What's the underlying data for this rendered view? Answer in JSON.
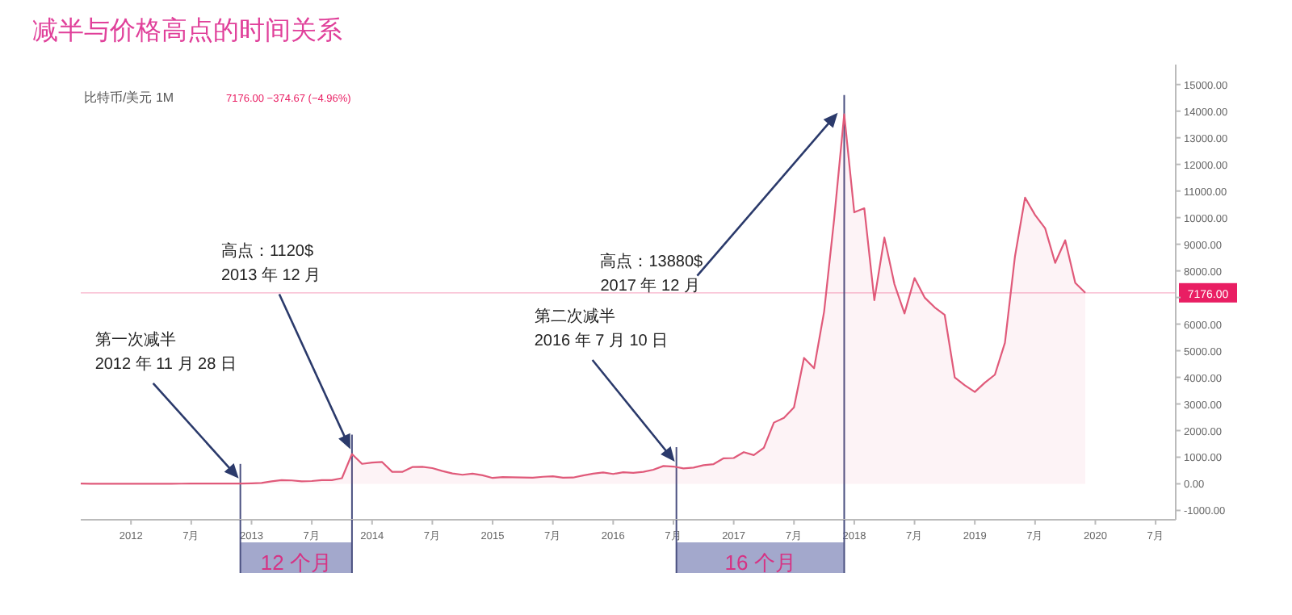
{
  "chart_data": {
    "type": "area",
    "title": "减半与价格高点的时间关系",
    "subtitle": "比特币/美元  1M",
    "x": [
      "2011-08",
      "2011-09",
      "2011-10",
      "2011-11",
      "2011-12",
      "2012-01",
      "2012-02",
      "2012-03",
      "2012-04",
      "2012-05",
      "2012-06",
      "2012-07",
      "2012-08",
      "2012-09",
      "2012-10",
      "2012-11",
      "2012-12",
      "2013-01",
      "2013-02",
      "2013-03",
      "2013-04",
      "2013-05",
      "2013-06",
      "2013-07",
      "2013-08",
      "2013-09",
      "2013-10",
      "2013-11",
      "2013-12",
      "2014-01",
      "2014-02",
      "2014-03",
      "2014-04",
      "2014-05",
      "2014-06",
      "2014-07",
      "2014-08",
      "2014-09",
      "2014-10",
      "2014-11",
      "2014-12",
      "2015-01",
      "2015-02",
      "2015-03",
      "2015-04",
      "2015-05",
      "2015-06",
      "2015-07",
      "2015-08",
      "2015-09",
      "2015-10",
      "2015-11",
      "2015-12",
      "2016-01",
      "2016-02",
      "2016-03",
      "2016-04",
      "2016-05",
      "2016-06",
      "2016-07",
      "2016-08",
      "2016-09",
      "2016-10",
      "2016-11",
      "2016-12",
      "2017-01",
      "2017-02",
      "2017-03",
      "2017-04",
      "2017-05",
      "2017-06",
      "2017-07",
      "2017-08",
      "2017-09",
      "2017-10",
      "2017-11",
      "2017-12",
      "2018-01",
      "2018-02",
      "2018-03",
      "2018-04",
      "2018-05",
      "2018-06",
      "2018-07",
      "2018-08",
      "2018-09",
      "2018-10",
      "2018-11",
      "2018-12",
      "2019-01",
      "2019-02",
      "2019-03",
      "2019-04",
      "2019-05",
      "2019-06",
      "2019-07",
      "2019-08",
      "2019-09",
      "2019-10",
      "2019-11",
      "2019-12"
    ],
    "series": [
      {
        "color": "#e05a7a",
        "values": [
          10,
          5,
          3,
          3,
          5,
          6,
          5,
          5,
          5,
          5,
          7,
          9,
          10,
          12,
          11,
          12,
          13,
          20,
          33,
          93,
          139,
          128,
          97,
          106,
          141,
          141,
          211,
          1120,
          750,
          800,
          820,
          450,
          450,
          630,
          640,
          590,
          480,
          390,
          340,
          380,
          320,
          220,
          250,
          245,
          235,
          230,
          265,
          285,
          230,
          235,
          315,
          380,
          430,
          370,
          435,
          415,
          450,
          530,
          670,
          650,
          580,
          610,
          700,
          740,
          960,
          970,
          1190,
          1080,
          1350,
          2300,
          2480,
          2870,
          4730,
          4340,
          6470,
          9950,
          13880,
          10200,
          10350,
          6900,
          9250,
          7500,
          6400,
          7730,
          7000,
          6630,
          6350,
          4000,
          3700,
          3450,
          3800,
          4100,
          5300,
          8550,
          10750,
          10100,
          9600,
          8300,
          9150,
          7550,
          7176
        ]
      }
    ],
    "xlim": [
      "2011-08",
      "2020-09"
    ],
    "xticks": [
      {
        "value": "2012-01",
        "label": "2012"
      },
      {
        "value": "2012-07",
        "label": "7月"
      },
      {
        "value": "2013-01",
        "label": "2013"
      },
      {
        "value": "2013-07",
        "label": "7月"
      },
      {
        "value": "2014-01",
        "label": "2014"
      },
      {
        "value": "2014-07",
        "label": "7月"
      },
      {
        "value": "2015-01",
        "label": "2015"
      },
      {
        "value": "2015-07",
        "label": "7月"
      },
      {
        "value": "2016-01",
        "label": "2016"
      },
      {
        "value": "2016-07",
        "label": "7月"
      },
      {
        "value": "2017-01",
        "label": "2017"
      },
      {
        "value": "2017-07",
        "label": "7月"
      },
      {
        "value": "2018-01",
        "label": "2018"
      },
      {
        "value": "2018-07",
        "label": "7月"
      },
      {
        "value": "2019-01",
        "label": "2019"
      },
      {
        "value": "2019-07",
        "label": "7月"
      },
      {
        "value": "2020-01",
        "label": "2020"
      },
      {
        "value": "2020-07",
        "label": "7月"
      }
    ],
    "ylim": [
      -1350,
      15750
    ],
    "yticks": [
      {
        "value": -1000,
        "label": "-1000.00"
      },
      {
        "value": 0,
        "label": "0.00"
      },
      {
        "value": 1000,
        "label": "1000.00"
      },
      {
        "value": 2000,
        "label": "2000.00"
      },
      {
        "value": 3000,
        "label": "3000.00"
      },
      {
        "value": 4000,
        "label": "4000.00"
      },
      {
        "value": 5000,
        "label": "5000.00"
      },
      {
        "value": 6000,
        "label": "6000.00"
      },
      {
        "value": 7000,
        "label": null
      },
      {
        "value": 8000,
        "label": "8000.00"
      },
      {
        "value": 9000,
        "label": "9000.00"
      },
      {
        "value": 10000,
        "label": "10000.00"
      },
      {
        "value": 11000,
        "label": "11000.00"
      },
      {
        "value": 12000,
        "label": "12000.00"
      },
      {
        "value": 13000,
        "label": "13000.00"
      },
      {
        "value": 14000,
        "label": "14000.00"
      },
      {
        "value": 15000,
        "label": "15000.00"
      }
    ],
    "ref_lines": [
      {
        "axis": "y",
        "value": 7176,
        "label": "7176.00",
        "color": "#e91e63"
      },
      {
        "axis": "x",
        "value": "2012-11-28",
        "color": "#4a5080"
      },
      {
        "axis": "x",
        "value": "2013-11",
        "color": "#4a5080"
      },
      {
        "axis": "x",
        "value": "2016-07-10",
        "color": "#4a5080"
      },
      {
        "axis": "x",
        "value": "2017-12",
        "color": "#4a5080"
      }
    ],
    "annotations": [
      "第一次减半\n2012 年 11 月 28 日",
      "高点：1120$\n2013 年 12 月",
      "第二次减半\n2016 年 7 月 10 日",
      "高点：13880$\n2017 年 12 月",
      "7176.00 −374.67 (−4.96%)",
      "12 个月",
      "16 个月"
    ],
    "grid": false
  }
}
